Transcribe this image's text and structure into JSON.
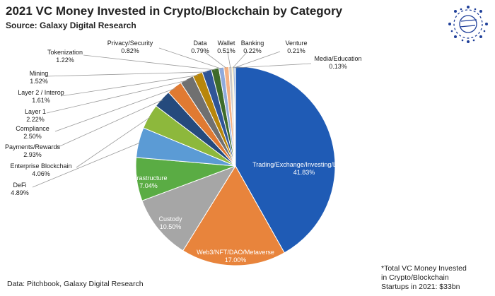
{
  "header": {
    "title": "2021 VC Money Invested in Crypto/Blockchain by Category",
    "subtitle": "Source: Galaxy Digital Research"
  },
  "footer": {
    "data_source": "Data: Pitchbook, Galaxy Digital Research",
    "note_lines": [
      "*Total VC Money Invested",
      "in Crypto/Blockchain",
      "Startups in 2021: $33bn"
    ]
  },
  "logo": {
    "icon": "galaxy-logo-icon",
    "color": "#1f3f99"
  },
  "chart_data": {
    "type": "pie",
    "title": "2021 VC Money Invested in Crypto/Blockchain by Category",
    "subtitle": "Source: Galaxy Digital Research",
    "unit": "percent",
    "slices": [
      {
        "label": "Trading/Exchange/Investing/Lending",
        "value": 41.83,
        "display": "41.83%",
        "color": "#1f5bb5"
      },
      {
        "label": "Web3/NFT/DAO/Metaverse",
        "value": 17.0,
        "display": "17.00%",
        "color": "#e8843c"
      },
      {
        "label": "Custody",
        "value": 10.5,
        "display": "10.50%",
        "color": "#a6a6a6"
      },
      {
        "label": "Infrastructure",
        "value": 7.04,
        "display": "7.04%",
        "color": "#5aac44"
      },
      {
        "label": "DeFi",
        "value": 4.89,
        "display": "4.89%",
        "color": "#5b9bd5"
      },
      {
        "label": "Enterprise Blockchain",
        "value": 4.06,
        "display": "4.06%",
        "color": "#8db83c"
      },
      {
        "label": "Payments/Rewards",
        "value": 2.93,
        "display": "2.93%",
        "color": "#254a7d"
      },
      {
        "label": "Compliance",
        "value": 2.5,
        "display": "2.50%",
        "color": "#e07a32"
      },
      {
        "label": "Layer 1",
        "value": 2.22,
        "display": "2.22%",
        "color": "#707070"
      },
      {
        "label": "Layer 2 / Interop",
        "value": 1.61,
        "display": "1.61%",
        "color": "#b8860b"
      },
      {
        "label": "Mining",
        "value": 1.52,
        "display": "1.52%",
        "color": "#2f5597"
      },
      {
        "label": "Tokenization",
        "value": 1.22,
        "display": "1.22%",
        "color": "#3e6b2a"
      },
      {
        "label": "Privacy/Security",
        "value": 0.82,
        "display": "0.82%",
        "color": "#8faadc"
      },
      {
        "label": "Data",
        "value": 0.79,
        "display": "0.79%",
        "color": "#f4b183"
      },
      {
        "label": "Wallet",
        "value": 0.51,
        "display": "0.51%",
        "color": "#c9c9c9"
      },
      {
        "label": "Banking",
        "value": 0.22,
        "display": "0.22%",
        "color": "#ffd966"
      },
      {
        "label": "Venture",
        "value": 0.21,
        "display": "0.21%",
        "color": "#4472c4"
      },
      {
        "label": "Media/Education",
        "value": 0.13,
        "display": "0.13%",
        "color": "#a9d18e"
      }
    ],
    "footnote": "*Total VC Money Invested in Crypto/Blockchain Startups in 2021: $33bn"
  }
}
